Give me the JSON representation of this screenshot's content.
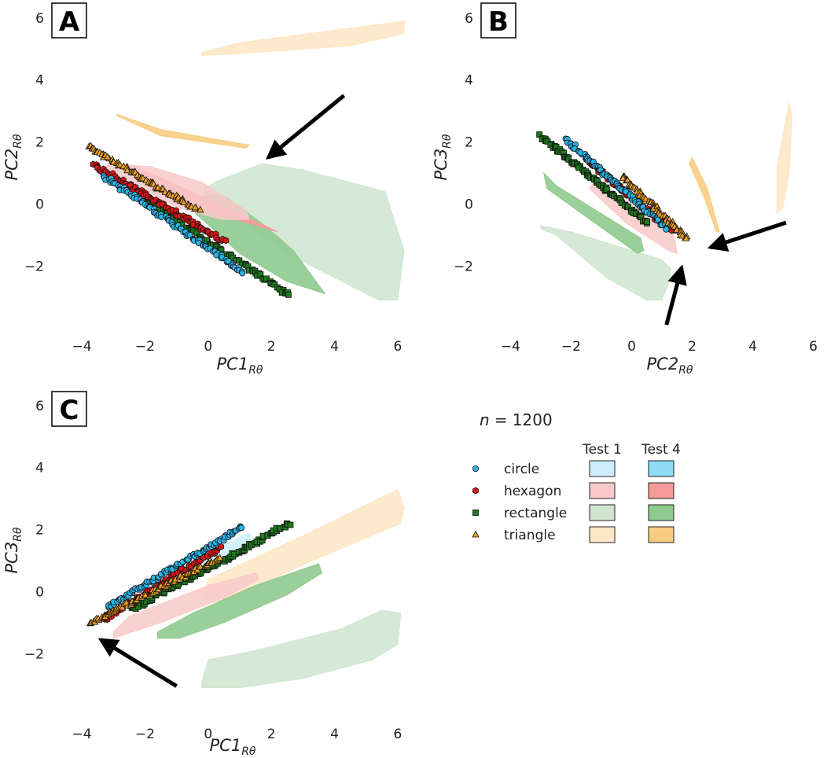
{
  "figure": {
    "n_label": "n",
    "n_value": "= 1200",
    "legend": {
      "col_test1": "Test 1",
      "col_test4": "Test 4",
      "entries": [
        {
          "key": "circle",
          "label": "circle",
          "marker": "circle",
          "color": "#29b6e8",
          "test1_fill": "#cdeffb",
          "test4_fill": "#8fdcf5"
        },
        {
          "key": "hexagon",
          "label": "hexagon",
          "marker": "hexagon",
          "color": "#d91515",
          "test1_fill": "#f9c9c9",
          "test4_fill": "#f59a9a"
        },
        {
          "key": "rectangle",
          "label": "rectangle",
          "marker": "square",
          "color": "#1d7a1d",
          "test1_fill": "#cfe5cf",
          "test4_fill": "#8fca8f"
        },
        {
          "key": "triangle",
          "label": "triangle",
          "marker": "triangle",
          "color": "#f0a020",
          "test1_fill": "#fde6c4",
          "test4_fill": "#f8cd82"
        }
      ]
    }
  },
  "chart_data": [
    {
      "id": "A",
      "panel_label": "A",
      "type": "scatter",
      "xlabel": "PC1",
      "xlabel_sub": "Rθ",
      "ylabel": "PC2",
      "ylabel_sub": "Rθ",
      "xlim": [
        -4.4,
        6.4
      ],
      "ylim": [
        -4.2,
        6.2
      ],
      "xticks": [
        -4,
        -2,
        0,
        2,
        4,
        6
      ],
      "xtick_labels": [
        "−4",
        "−2",
        "0",
        "2",
        "4",
        "6"
      ],
      "yticks": [
        -2,
        0,
        2,
        4,
        6
      ],
      "ytick_labels": [
        "−2",
        "0",
        "2",
        "4",
        "6"
      ],
      "hulls": [
        {
          "name": "rectangle-test1",
          "shape": "rectangle",
          "test": "Test 1",
          "points": [
            [
              -0.1,
              0.5
            ],
            [
              0.2,
              0.7
            ],
            [
              1.7,
              1.3
            ],
            [
              3.0,
              1.1
            ],
            [
              5.6,
              0.4
            ],
            [
              6.2,
              -1.5
            ],
            [
              6.0,
              -3.1
            ],
            [
              5.4,
              -3.1
            ],
            [
              2.5,
              -1.6
            ],
            [
              0.5,
              -0.1
            ],
            [
              -0.1,
              0.3
            ]
          ]
        },
        {
          "name": "rectangle-test4",
          "shape": "rectangle",
          "test": "Test 4",
          "points": [
            [
              -0.5,
              0.1
            ],
            [
              0.0,
              0.3
            ],
            [
              0.6,
              0.2
            ],
            [
              1.8,
              -0.7
            ],
            [
              2.7,
              -1.5
            ],
            [
              3.7,
              -2.9
            ],
            [
              2.5,
              -2.5
            ],
            [
              1.0,
              -1.6
            ],
            [
              -0.4,
              -0.3
            ]
          ]
        },
        {
          "name": "triangle-test1-upper",
          "shape": "triangle",
          "test": "Test 1",
          "points": [
            [
              -0.2,
              4.9
            ],
            [
              1.0,
              5.2
            ],
            [
              6.2,
              5.9
            ],
            [
              6.2,
              5.5
            ],
            [
              4.5,
              5.1
            ],
            [
              1.0,
              4.85
            ],
            [
              -0.2,
              4.8
            ]
          ]
        },
        {
          "name": "triangle-test4",
          "shape": "triangle",
          "test": "Test 4",
          "points": [
            [
              -2.9,
              2.9
            ],
            [
              -1.5,
              2.4
            ],
            [
              1.3,
              1.9
            ],
            [
              1.2,
              1.8
            ],
            [
              -1.5,
              2.2
            ],
            [
              -2.9,
              2.85
            ]
          ]
        },
        {
          "name": "hexagon-test4",
          "shape": "hexagon",
          "test": "Test 4",
          "points": [
            [
              -2.6,
              1.3
            ],
            [
              -1.6,
              0.9
            ],
            [
              0.3,
              0.0
            ],
            [
              2.0,
              -0.8
            ],
            [
              2.2,
              -0.9
            ],
            [
              0.2,
              -0.3
            ],
            [
              -1.7,
              0.4
            ],
            [
              -2.6,
              1.1
            ]
          ]
        },
        {
          "name": "hexagon-test1",
          "shape": "hexagon",
          "test": "Test 1",
          "points": [
            [
              -3.2,
              1.3
            ],
            [
              -1.8,
              1.2
            ],
            [
              -0.2,
              0.7
            ],
            [
              1.2,
              -0.2
            ],
            [
              1.3,
              -0.5
            ],
            [
              0.4,
              -0.5
            ],
            [
              -1.0,
              -0.1
            ],
            [
              -3.2,
              1.1
            ]
          ]
        }
      ],
      "series": [
        {
          "name": "circle",
          "marker": "circle",
          "x_range": [
            -3.3,
            1.1
          ],
          "y_range": [
            0.9,
            -2.2
          ],
          "count": 95
        },
        {
          "name": "hexagon",
          "marker": "hexagon",
          "x_range": [
            -3.6,
            0.5
          ],
          "y_range": [
            1.25,
            -1.2
          ],
          "count": 85
        },
        {
          "name": "rectangle",
          "marker": "square",
          "x_range": [
            -2.8,
            2.6
          ],
          "y_range": [
            0.65,
            -2.95
          ],
          "count": 105
        },
        {
          "name": "triangle",
          "marker": "triangle",
          "x_range": [
            -3.8,
            -0.3
          ],
          "y_range": [
            1.85,
            -0.2
          ],
          "count": 75
        }
      ],
      "arrows": [
        {
          "from": [
            4.3,
            3.5
          ],
          "to": [
            1.9,
            1.5
          ]
        }
      ]
    },
    {
      "id": "B",
      "panel_label": "B",
      "type": "scatter",
      "xlabel": "PC2",
      "xlabel_sub": "Rθ",
      "ylabel": "PC3",
      "ylabel_sub": "Rθ",
      "xlim": [
        -4.4,
        6.4
      ],
      "ylim": [
        -4.2,
        6.2
      ],
      "xticks": [
        -4,
        -2,
        0,
        2,
        4,
        6
      ],
      "xtick_labels": [
        "−4",
        "−2",
        "0",
        "2",
        "4",
        "6"
      ],
      "yticks": [
        -2,
        0,
        2,
        4,
        6
      ],
      "ytick_labels": [
        "−2",
        "0",
        "2",
        "4",
        "6"
      ],
      "hulls": [
        {
          "name": "rectangle-test1",
          "shape": "rectangle",
          "test": "Test 1",
          "points": [
            [
              -3.0,
              -0.7
            ],
            [
              -2.0,
              -0.9
            ],
            [
              0.0,
              -1.5
            ],
            [
              1.0,
              -1.8
            ],
            [
              1.3,
              -2.1
            ],
            [
              1.2,
              -2.6
            ],
            [
              1.0,
              -3.1
            ],
            [
              0.5,
              -3.1
            ],
            [
              -0.8,
              -2.4
            ],
            [
              -2.5,
              -1.0
            ],
            [
              -3.0,
              -0.8
            ]
          ]
        },
        {
          "name": "rectangle-test4",
          "shape": "rectangle",
          "test": "Test 4",
          "points": [
            [
              -2.9,
              1.0
            ],
            [
              -2.5,
              0.6
            ],
            [
              0.3,
              -1.1
            ],
            [
              0.4,
              -1.5
            ],
            [
              0.2,
              -1.6
            ],
            [
              -2.8,
              0.5
            ]
          ]
        },
        {
          "name": "hexagon-test1",
          "shape": "hexagon",
          "test": "Test 1",
          "points": [
            [
              -1.2,
              0.8
            ],
            [
              1.4,
              -1.0
            ],
            [
              1.5,
              -1.6
            ],
            [
              1.2,
              -1.5
            ],
            [
              -0.2,
              -0.6
            ],
            [
              -1.4,
              0.5
            ]
          ]
        },
        {
          "name": "triangle-test1",
          "shape": "triangle",
          "test": "Test 1",
          "points": [
            [
              5.2,
              3.3
            ],
            [
              4.8,
              1.2
            ],
            [
              4.8,
              -0.3
            ],
            [
              5.0,
              -0.1
            ],
            [
              5.2,
              1.0
            ],
            [
              5.3,
              2.8
            ]
          ]
        },
        {
          "name": "triangle-test4",
          "shape": "triangle",
          "test": "Test 4",
          "points": [
            [
              2.0,
              1.5
            ],
            [
              2.5,
              0.5
            ],
            [
              2.9,
              -0.9
            ],
            [
              2.8,
              -0.9
            ],
            [
              2.4,
              0.2
            ],
            [
              1.9,
              1.3
            ]
          ]
        }
      ],
      "series": [
        {
          "name": "circle",
          "marker": "circle",
          "x_range": [
            -2.2,
            1.2
          ],
          "y_range": [
            2.1,
            -0.8
          ],
          "count": 85
        },
        {
          "name": "hexagon",
          "marker": "hexagon",
          "x_range": [
            -1.5,
            1.3
          ],
          "y_range": [
            1.45,
            -0.85
          ],
          "count": 70
        },
        {
          "name": "rectangle",
          "marker": "square",
          "x_range": [
            -3.0,
            0.5
          ],
          "y_range": [
            2.2,
            -0.6
          ],
          "count": 95
        },
        {
          "name": "triangle",
          "marker": "triangle",
          "x_range": [
            -0.3,
            1.8
          ],
          "y_range": [
            0.9,
            -1.1
          ],
          "count": 65
        }
      ],
      "arrows": [
        {
          "from": [
            5.1,
            -0.6
          ],
          "to": [
            2.6,
            -1.4
          ]
        },
        {
          "from": [
            1.15,
            -3.9
          ],
          "to": [
            1.65,
            -2.05
          ]
        }
      ]
    },
    {
      "id": "C",
      "panel_label": "C",
      "type": "scatter",
      "xlabel": "PC1",
      "xlabel_sub": "Rθ",
      "ylabel": "PC3",
      "ylabel_sub": "Rθ",
      "xlim": [
        -4.4,
        6.4
      ],
      "ylim": [
        -4.2,
        6.2
      ],
      "xticks": [
        -4,
        -2,
        0,
        2,
        4,
        6
      ],
      "xtick_labels": [
        "−4",
        "−2",
        "0",
        "2",
        "4",
        "6"
      ],
      "yticks": [
        -2,
        0,
        2,
        4,
        6
      ],
      "ytick_labels": [
        "−2",
        "0",
        "2",
        "4",
        "6"
      ],
      "hulls": [
        {
          "name": "triangle-test1",
          "shape": "triangle",
          "test": "Test 1",
          "points": [
            [
              -0.2,
              -0.3
            ],
            [
              0.0,
              0.4
            ],
            [
              3.0,
              1.8
            ],
            [
              6.0,
              3.3
            ],
            [
              6.2,
              2.7
            ],
            [
              6.1,
              2.2
            ],
            [
              3.3,
              1.0
            ],
            [
              0.5,
              -0.3
            ]
          ]
        },
        {
          "name": "rectangle-test1",
          "shape": "rectangle",
          "test": "Test 1",
          "points": [
            [
              -0.2,
              -2.9
            ],
            [
              0.0,
              -2.2
            ],
            [
              1.5,
              -1.9
            ],
            [
              4.2,
              -1.2
            ],
            [
              5.5,
              -0.6
            ],
            [
              6.1,
              -0.7
            ],
            [
              6.0,
              -1.7
            ],
            [
              5.2,
              -2.2
            ],
            [
              3.0,
              -2.8
            ],
            [
              1.0,
              -3.1
            ],
            [
              -0.2,
              -3.1
            ]
          ]
        },
        {
          "name": "rectangle-test4",
          "shape": "rectangle",
          "test": "Test 4",
          "points": [
            [
              -1.6,
              -1.5
            ],
            [
              -0.9,
              -1.5
            ],
            [
              0.5,
              -1.0
            ],
            [
              2.5,
              -0.1
            ],
            [
              3.6,
              0.6
            ],
            [
              3.5,
              0.9
            ],
            [
              1.5,
              0.2
            ],
            [
              -0.5,
              -0.7
            ],
            [
              -1.6,
              -1.3
            ]
          ]
        },
        {
          "name": "hexagon-test1",
          "shape": "hexagon",
          "test": "Test 1",
          "points": [
            [
              -3.0,
              -1.5
            ],
            [
              -1.5,
              -1.0
            ],
            [
              0.5,
              -0.2
            ],
            [
              1.6,
              0.4
            ],
            [
              1.5,
              0.6
            ],
            [
              0.0,
              0.2
            ],
            [
              -2.5,
              -0.8
            ],
            [
              -3.0,
              -1.3
            ]
          ]
        },
        {
          "name": "circle-test1",
          "shape": "circle",
          "test": "Test 1",
          "points": [
            [
              -1.0,
              0.8
            ],
            [
              0.5,
              1.5
            ],
            [
              1.3,
              1.9
            ],
            [
              1.4,
              1.6
            ],
            [
              0.3,
              0.9
            ],
            [
              -1.0,
              0.6
            ]
          ]
        }
      ],
      "series": [
        {
          "name": "circle",
          "marker": "circle",
          "x_range": [
            -3.2,
            1.1
          ],
          "y_range": [
            -0.5,
            2.1
          ],
          "count": 100
        },
        {
          "name": "hexagon",
          "marker": "hexagon",
          "x_range": [
            -3.3,
            0.4
          ],
          "y_range": [
            -0.9,
            1.45
          ],
          "count": 75
        },
        {
          "name": "rectangle",
          "marker": "square",
          "x_range": [
            -2.4,
            2.6
          ],
          "y_range": [
            -0.55,
            2.2
          ],
          "count": 105
        },
        {
          "name": "triangle",
          "marker": "triangle",
          "x_range": [
            -3.7,
            0.4
          ],
          "y_range": [
            -1.0,
            1.1
          ],
          "count": 90
        }
      ],
      "arrows": [
        {
          "from": [
            -1.0,
            -3.05
          ],
          "to": [
            -3.4,
            -1.55
          ]
        }
      ]
    }
  ]
}
